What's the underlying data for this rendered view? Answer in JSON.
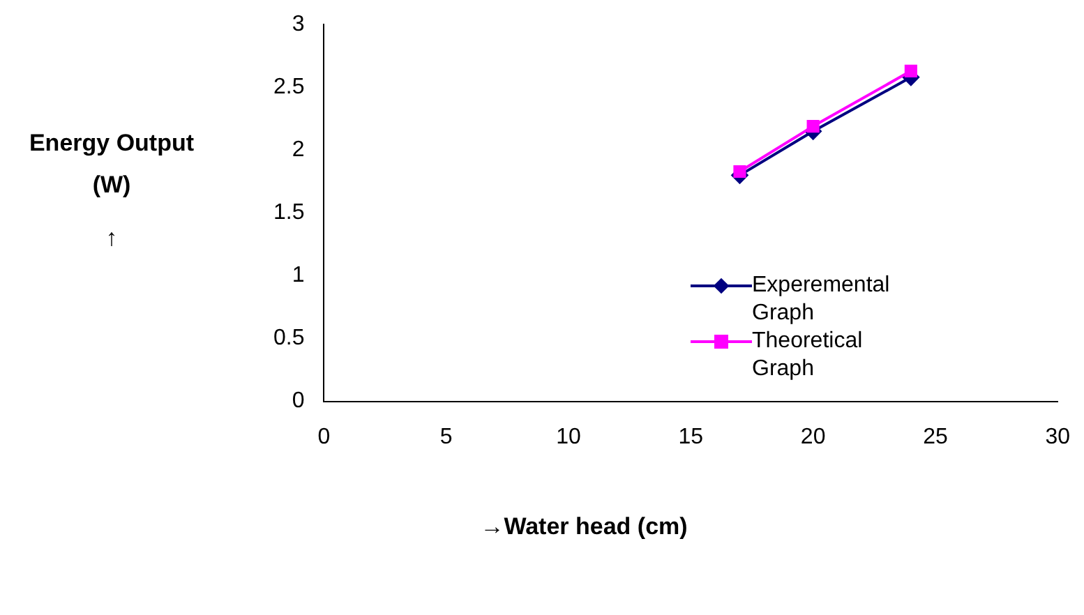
{
  "chart_data": {
    "type": "line",
    "xlabel": "→Water head (cm)",
    "ylabel": "Energy Output (W)",
    "annotations": [
      "↑"
    ],
    "xlim": [
      0,
      30
    ],
    "xticks": [
      0,
      5,
      10,
      15,
      20,
      25,
      30
    ],
    "ylim": [
      0,
      3
    ],
    "yticks": [
      0,
      0.5,
      1,
      1.5,
      2,
      2.5,
      3
    ],
    "grid": false,
    "legend": "right",
    "line_style": "solid",
    "series": [
      {
        "name": "Experemental Graph",
        "color": "#000080",
        "marker": "diamond",
        "x": [
          17,
          20,
          24
        ],
        "values": [
          1.8,
          2.15,
          2.58
        ]
      },
      {
        "name": "Theoretical Graph",
        "color": "#ff00ff",
        "marker": "square",
        "x": [
          17,
          20,
          24
        ],
        "values": [
          1.83,
          2.19,
          2.63
        ]
      }
    ]
  }
}
